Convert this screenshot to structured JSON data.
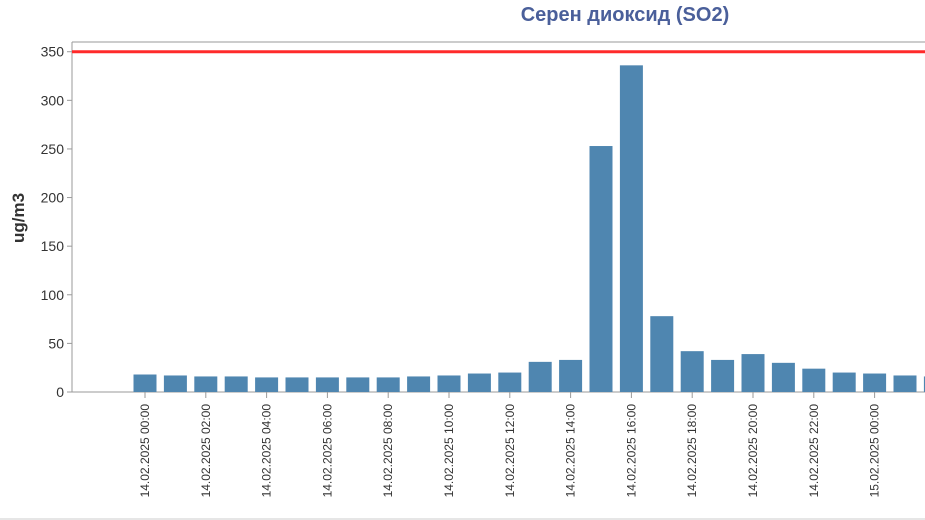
{
  "chart_data": {
    "type": "bar",
    "title": "Серен диоксид (SO2)",
    "ylabel": "ug/m3",
    "xlabel": "",
    "ylim": [
      0,
      360
    ],
    "yticks": [
      0,
      50,
      100,
      150,
      200,
      250,
      300,
      350
    ],
    "limit_line": {
      "value": 350,
      "color": "#ff2a2a"
    },
    "bar_color": "#4f86b0",
    "grid": false,
    "x_tick_labels": [
      "14.02.2025 00:00",
      "14.02.2025 02:00",
      "14.02.2025 04:00",
      "14.02.2025 06:00",
      "14.02.2025 08:00",
      "14.02.2025 10:00",
      "14.02.2025 12:00",
      "14.02.2025 14:00",
      "14.02.2025 16:00",
      "14.02.2025 18:00",
      "14.02.2025 20:00",
      "14.02.2025 22:00",
      "15.02.2025 00:00"
    ],
    "categories": [
      "14.02.2025 00:00",
      "14.02.2025 01:00",
      "14.02.2025 02:00",
      "14.02.2025 03:00",
      "14.02.2025 04:00",
      "14.02.2025 05:00",
      "14.02.2025 06:00",
      "14.02.2025 07:00",
      "14.02.2025 08:00",
      "14.02.2025 09:00",
      "14.02.2025 10:00",
      "14.02.2025 11:00",
      "14.02.2025 12:00",
      "14.02.2025 13:00",
      "14.02.2025 14:00",
      "14.02.2025 15:00",
      "14.02.2025 16:00",
      "14.02.2025 17:00",
      "14.02.2025 18:00",
      "14.02.2025 19:00",
      "14.02.2025 20:00",
      "14.02.2025 21:00",
      "14.02.2025 22:00",
      "14.02.2025 23:00",
      "15.02.2025 00:00",
      "15.02.2025 01:00",
      "15.02.2025 02:00"
    ],
    "values": [
      18,
      17,
      16,
      16,
      15,
      15,
      15,
      15,
      15,
      16,
      17,
      19,
      20,
      31,
      33,
      253,
      336,
      78,
      42,
      33,
      39,
      30,
      24,
      20,
      19,
      17,
      16
    ]
  }
}
